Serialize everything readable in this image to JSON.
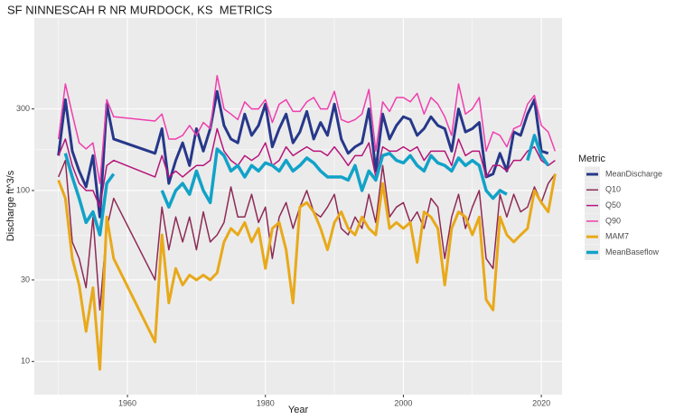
{
  "chart_data": {
    "type": "line",
    "title": "SF NINNESCAH R NR MURDOCK, KS  METRICS",
    "x_label": "Year",
    "y_label": "Discharge ft^3/s",
    "legend_title": "Metric",
    "legend": "right",
    "grid": true,
    "log_y": true,
    "xlim": [
      1946.5,
      2023
    ],
    "ylim": [
      6.4,
      1020
    ],
    "xticks": [
      1960,
      1980,
      2000,
      2020
    ],
    "yticks": [
      10,
      30,
      100,
      300
    ],
    "x": [
      1950,
      1951,
      1952,
      1953,
      1954,
      1955,
      1956,
      1957,
      1958,
      1964,
      1965,
      1966,
      1967,
      1968,
      1969,
      1970,
      1971,
      1972,
      1973,
      1974,
      1975,
      1976,
      1977,
      1978,
      1979,
      1980,
      1981,
      1982,
      1983,
      1984,
      1985,
      1986,
      1987,
      1988,
      1989,
      1990,
      1991,
      1992,
      1993,
      1994,
      1995,
      1996,
      1997,
      1998,
      1999,
      2000,
      2001,
      2002,
      2003,
      2004,
      2005,
      2006,
      2007,
      2008,
      2009,
      2010,
      2011,
      2012,
      2013,
      2014,
      2015,
      2016,
      2017,
      2018,
      2019,
      2020,
      2021,
      2022
    ],
    "series": [
      {
        "name": "MeanDischarge",
        "color": "#27388a",
        "width": 3,
        "values": [
          160,
          340,
          170,
          130,
          105,
          160,
          70,
          320,
          200,
          165,
          230,
          110,
          150,
          190,
          140,
          230,
          170,
          230,
          380,
          240,
          200,
          190,
          280,
          210,
          240,
          320,
          180,
          230,
          280,
          190,
          220,
          290,
          200,
          250,
          210,
          320,
          200,
          165,
          180,
          190,
          300,
          130,
          280,
          200,
          240,
          270,
          260,
          210,
          230,
          270,
          240,
          230,
          170,
          300,
          220,
          230,
          250,
          120,
          125,
          165,
          130,
          220,
          210,
          280,
          340,
          170,
          165,
          null
        ]
      },
      {
        "name": "Q10",
        "color": "#8e2a55",
        "width": 1.5,
        "values": [
          120,
          150,
          50,
          40,
          27,
          70,
          20,
          60,
          90,
          30,
          80,
          45,
          70,
          50,
          70,
          45,
          75,
          50,
          55,
          65,
          105,
          70,
          70,
          95,
          65,
          80,
          40,
          70,
          85,
          60,
          80,
          100,
          75,
          70,
          80,
          95,
          60,
          55,
          70,
          60,
          95,
          65,
          140,
          70,
          80,
          85,
          65,
          75,
          60,
          90,
          80,
          40,
          70,
          95,
          60,
          80,
          100,
          40,
          35,
          95,
          70,
          95,
          75,
          80,
          105,
          85,
          110,
          125
        ]
      },
      {
        "name": "Q50",
        "color": "#b5157a",
        "width": 1.5,
        "values": [
          160,
          200,
          140,
          110,
          100,
          100,
          80,
          140,
          150,
          120,
          160,
          120,
          130,
          120,
          130,
          140,
          140,
          150,
          230,
          170,
          150,
          140,
          160,
          150,
          160,
          190,
          140,
          150,
          180,
          160,
          170,
          180,
          170,
          170,
          160,
          180,
          160,
          140,
          160,
          160,
          190,
          120,
          180,
          170,
          170,
          180,
          170,
          180,
          150,
          170,
          170,
          170,
          140,
          200,
          160,
          170,
          170,
          120,
          140,
          140,
          130,
          150,
          150,
          170,
          180,
          150,
          140,
          150
        ]
      },
      {
        "name": "Q90",
        "color": "#ef3fae",
        "width": 1.5,
        "values": [
          200,
          420,
          280,
          190,
          175,
          190,
          110,
          340,
          270,
          255,
          280,
          200,
          200,
          210,
          240,
          210,
          250,
          230,
          470,
          300,
          280,
          260,
          330,
          300,
          300,
          340,
          250,
          320,
          340,
          290,
          290,
          330,
          350,
          300,
          300,
          380,
          260,
          250,
          260,
          280,
          390,
          170,
          330,
          290,
          350,
          350,
          330,
          370,
          280,
          350,
          320,
          270,
          210,
          420,
          280,
          300,
          350,
          170,
          220,
          210,
          180,
          230,
          240,
          320,
          360,
          240,
          220,
          170
        ]
      },
      {
        "name": "MAM7",
        "color": "#e8a91a",
        "width": 3,
        "values": [
          115,
          90,
          40,
          28,
          15,
          27,
          9,
          70,
          40,
          13,
          55,
          22,
          35,
          28,
          32,
          30,
          32,
          30,
          33,
          50,
          60,
          55,
          65,
          50,
          60,
          35,
          60,
          65,
          45,
          22,
          80,
          85,
          75,
          60,
          45,
          65,
          75,
          60,
          55,
          70,
          60,
          55,
          110,
          60,
          65,
          60,
          65,
          38,
          75,
          70,
          60,
          28,
          60,
          75,
          70,
          55,
          70,
          23,
          20,
          70,
          55,
          50,
          55,
          60,
          100,
          85,
          75,
          125
        ]
      },
      {
        "name": "MeanBaseflow",
        "color": "#12a2c8",
        "width": 3.5,
        "values": [
          null,
          165,
          120,
          90,
          65,
          75,
          55,
          110,
          125,
          null,
          100,
          80,
          100,
          110,
          95,
          130,
          100,
          85,
          175,
          160,
          130,
          140,
          120,
          140,
          130,
          145,
          140,
          130,
          150,
          130,
          140,
          155,
          145,
          130,
          120,
          120,
          120,
          115,
          140,
          100,
          130,
          115,
          160,
          165,
          150,
          145,
          160,
          140,
          130,
          160,
          145,
          140,
          130,
          155,
          140,
          150,
          140,
          100,
          90,
          100,
          95,
          null,
          null,
          150,
          210,
          160,
          140,
          null
        ]
      }
    ]
  }
}
